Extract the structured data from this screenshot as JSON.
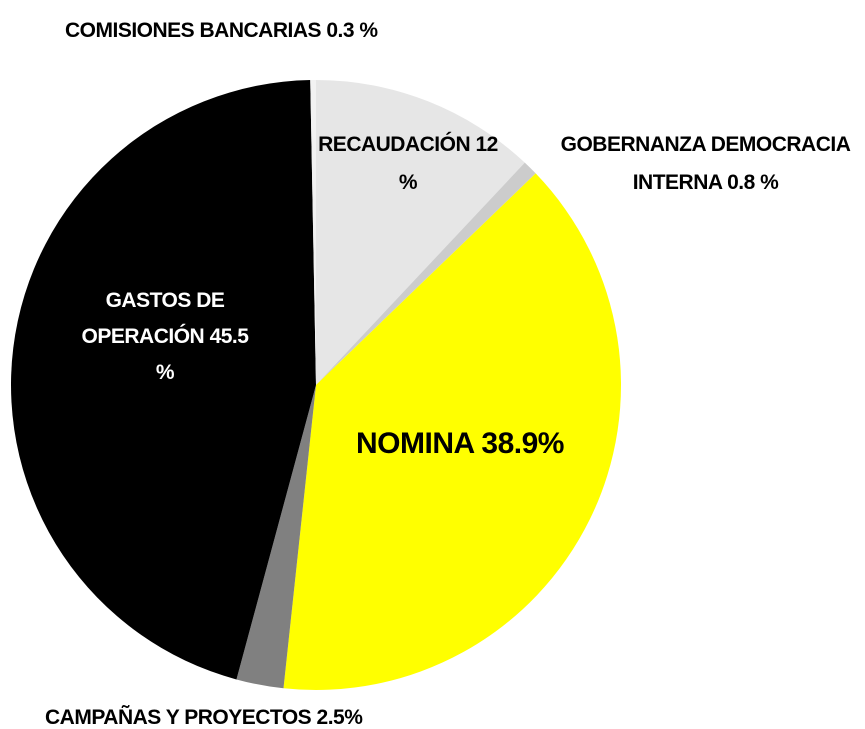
{
  "chart_data": {
    "type": "pie",
    "categories": [
      "RECAUDACIÓN",
      "GOBERNANZA DEMOCRACIA INTERNA",
      "NOMINA",
      "CAMPAÑAS Y PROYECTOS",
      "GASTOS DE OPERACIÓN",
      "COMISIONES BANCARIAS"
    ],
    "values": [
      12,
      0.8,
      38.9,
      2.5,
      45.5,
      0.3
    ],
    "value_labels": [
      "12 %",
      "0.8 %",
      "38.9%",
      "2.5%",
      "45.5 %",
      "0.3 %"
    ],
    "colors": [
      "#e6e6e6",
      "#cccccc",
      "#ffff00",
      "#808080",
      "#000000",
      "#f2f2f2"
    ]
  }
}
